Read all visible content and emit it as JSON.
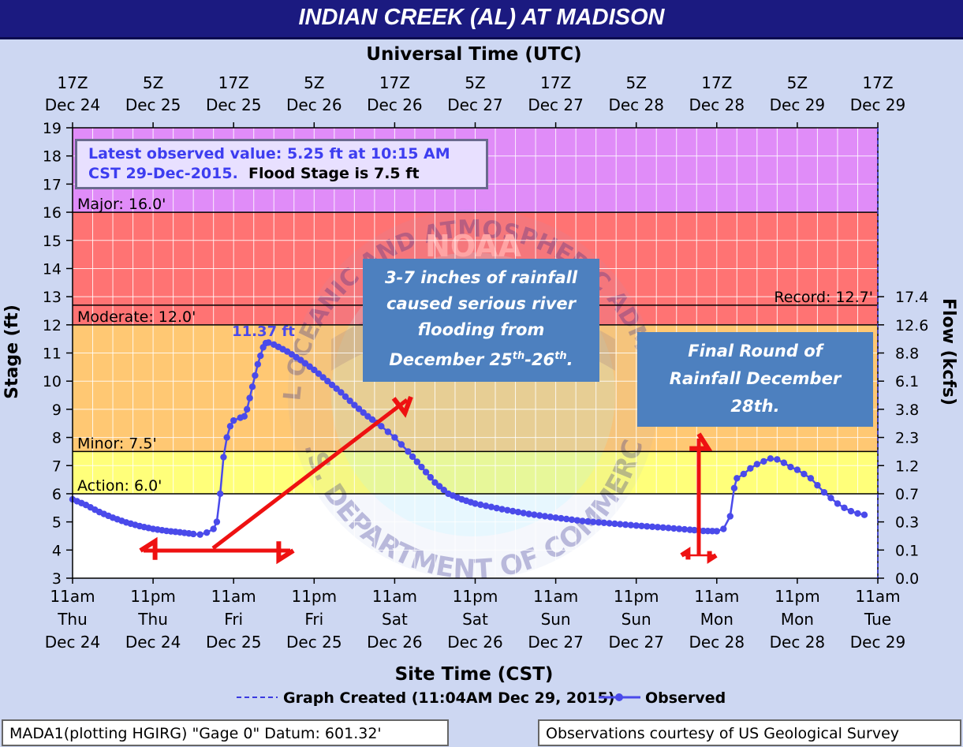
{
  "title": "INDIAN CREEK (AL) AT MADISON",
  "top_axis_title": "Universal Time (UTC)",
  "bottom_axis_title": "Site Time (CST)",
  "left_axis_title": "Stage (ft)",
  "right_axis_title": "Flow (kcfs)",
  "latest": {
    "line1": "Latest observed value: 5.25 ft at 10:15 AM",
    "line2_blue": "CST 29-Dec-2015.",
    "line2_black": "Flood Stage is 7.5 ft"
  },
  "peak_label": "11.37 ft",
  "callouts": {
    "rainfall_line1": "3-7 inches of rainfall",
    "rainfall_line2": "caused serious river",
    "rainfall_line3": "flooding  from",
    "rainfall_line4a": "December 25",
    "rainfall_sup1": "th",
    "rainfall_line4b": "-26",
    "rainfall_sup2": "th",
    "rainfall_line4c": ".",
    "final_line1": "Final Round of",
    "final_line2": "Rainfall December",
    "final_line3": "28th."
  },
  "legend": {
    "graph_created": "Graph Created (11:04AM Dec 29, 2015)",
    "observed": "Observed"
  },
  "footer": {
    "left": "MADA1(plotting HGIRG) \"Gage 0\" Datum: 601.32'",
    "right": "Observations courtesy of US Geological Survey"
  },
  "watermark": {
    "top_text": "NATIONAL OCEANIC AND ATMOSPHERIC ADMINISTRATION",
    "bottom_text": "U.S. DEPARTMENT OF COMMERCE",
    "center_text": "NOAA"
  },
  "colors": {
    "major": "#e08cf8",
    "moderate": "#ff7373",
    "minor": "#ffc873",
    "action": "#ffff7a",
    "series": "#4a4aea",
    "arrows": "#ee1111",
    "callout": "#4d80bf"
  },
  "chart_data": {
    "type": "line",
    "ylim": [
      3,
      19
    ],
    "y_ticks": [
      "3",
      "4",
      "5",
      "6",
      "7",
      "8",
      "9",
      "10",
      "11",
      "12",
      "13",
      "14",
      "15",
      "16",
      "17",
      "18",
      "19"
    ],
    "flow_ticks": [
      {
        "stage": 3,
        "label": "0.0"
      },
      {
        "stage": 4,
        "label": "0.1"
      },
      {
        "stage": 5,
        "label": "0.3"
      },
      {
        "stage": 6,
        "label": "0.7"
      },
      {
        "stage": 7,
        "label": "1.2"
      },
      {
        "stage": 8,
        "label": "2.3"
      },
      {
        "stage": 9,
        "label": "3.8"
      },
      {
        "stage": 10,
        "label": "6.1"
      },
      {
        "stage": 11,
        "label": "8.8"
      },
      {
        "stage": 12,
        "label": "12.6"
      },
      {
        "stage": 13,
        "label": "17.4"
      }
    ],
    "x_hours_range": [
      0,
      120
    ],
    "bottom_ticks": [
      {
        "h": 0,
        "l1": "11am",
        "l2": "Thu",
        "l3": "Dec 24"
      },
      {
        "h": 12,
        "l1": "11pm",
        "l2": "Thu",
        "l3": "Dec 24"
      },
      {
        "h": 24,
        "l1": "11am",
        "l2": "Fri",
        "l3": "Dec 25"
      },
      {
        "h": 36,
        "l1": "11pm",
        "l2": "Fri",
        "l3": "Dec 25"
      },
      {
        "h": 48,
        "l1": "11am",
        "l2": "Sat",
        "l3": "Dec 26"
      },
      {
        "h": 60,
        "l1": "11pm",
        "l2": "Sat",
        "l3": "Dec 26"
      },
      {
        "h": 72,
        "l1": "11am",
        "l2": "Sun",
        "l3": "Dec 27"
      },
      {
        "h": 84,
        "l1": "11pm",
        "l2": "Sun",
        "l3": "Dec 27"
      },
      {
        "h": 96,
        "l1": "11am",
        "l2": "Mon",
        "l3": "Dec 28"
      },
      {
        "h": 108,
        "l1": "11pm",
        "l2": "Mon",
        "l3": "Dec 28"
      },
      {
        "h": 120,
        "l1": "11am",
        "l2": "Tue",
        "l3": "Dec 29"
      }
    ],
    "top_ticks": [
      {
        "h": 0,
        "l1": "17Z",
        "l2": "Dec 24"
      },
      {
        "h": 12,
        "l1": "5Z",
        "l2": "Dec 25"
      },
      {
        "h": 24,
        "l1": "17Z",
        "l2": "Dec 25"
      },
      {
        "h": 36,
        "l1": "5Z",
        "l2": "Dec 26"
      },
      {
        "h": 48,
        "l1": "17Z",
        "l2": "Dec 26"
      },
      {
        "h": 60,
        "l1": "5Z",
        "l2": "Dec 27"
      },
      {
        "h": 72,
        "l1": "17Z",
        "l2": "Dec 27"
      },
      {
        "h": 84,
        "l1": "5Z",
        "l2": "Dec 28"
      },
      {
        "h": 96,
        "l1": "17Z",
        "l2": "Dec 28"
      },
      {
        "h": 108,
        "l1": "5Z",
        "l2": "Dec 29"
      },
      {
        "h": 120,
        "l1": "17Z",
        "l2": "Dec 29"
      }
    ],
    "bands": [
      {
        "name": "Major",
        "label": "Major: 16.0'",
        "from": 16,
        "to": 19,
        "color": "#e08cf8"
      },
      {
        "name": "Moderate",
        "label": "Moderate: 12.0'",
        "from": 12,
        "to": 16,
        "color": "#ff7373"
      },
      {
        "name": "Minor",
        "label": "Minor: 7.5'",
        "from": 7.5,
        "to": 12,
        "color": "#ffc873"
      },
      {
        "name": "Action",
        "label": "Action: 6.0'",
        "from": 6,
        "to": 7.5,
        "color": "#ffff7a"
      }
    ],
    "record": {
      "label": "Record: 12.7'",
      "value": 12.7
    },
    "series": [
      {
        "name": "Observed",
        "points": [
          [
            0,
            5.8
          ],
          [
            2,
            5.6
          ],
          [
            4,
            5.35
          ],
          [
            6,
            5.15
          ],
          [
            8,
            4.98
          ],
          [
            10,
            4.85
          ],
          [
            12,
            4.75
          ],
          [
            14,
            4.68
          ],
          [
            16,
            4.63
          ],
          [
            18,
            4.57
          ],
          [
            19,
            4.55
          ],
          [
            20,
            4.62
          ],
          [
            21,
            4.75
          ],
          [
            21.5,
            5.0
          ],
          [
            22,
            6.0
          ],
          [
            22.5,
            7.3
          ],
          [
            23,
            8.0
          ],
          [
            23.5,
            8.4
          ],
          [
            24,
            8.6
          ],
          [
            25,
            8.7
          ],
          [
            25.6,
            8.75
          ],
          [
            26,
            9.0
          ],
          [
            26.4,
            9.4
          ],
          [
            26.8,
            9.8
          ],
          [
            27.2,
            10.2
          ],
          [
            27.6,
            10.6
          ],
          [
            28,
            10.9
          ],
          [
            28.4,
            11.2
          ],
          [
            28.8,
            11.35
          ],
          [
            29.2,
            11.37
          ],
          [
            30,
            11.3
          ],
          [
            32,
            11.05
          ],
          [
            34,
            10.75
          ],
          [
            36,
            10.4
          ],
          [
            38,
            10.0
          ],
          [
            40,
            9.6
          ],
          [
            42,
            9.15
          ],
          [
            44,
            8.75
          ],
          [
            46,
            8.4
          ],
          [
            47,
            8.2
          ],
          [
            48,
            8.0
          ],
          [
            49,
            7.75
          ],
          [
            50,
            7.5
          ],
          [
            52,
            6.95
          ],
          [
            54,
            6.4
          ],
          [
            56,
            6.0
          ],
          [
            58,
            5.8
          ],
          [
            60,
            5.65
          ],
          [
            64,
            5.45
          ],
          [
            68,
            5.28
          ],
          [
            72,
            5.15
          ],
          [
            76,
            5.03
          ],
          [
            80,
            4.95
          ],
          [
            84,
            4.87
          ],
          [
            88,
            4.8
          ],
          [
            92,
            4.72
          ],
          [
            94,
            4.68
          ],
          [
            96,
            4.67
          ],
          [
            97,
            4.75
          ],
          [
            98,
            5.2
          ],
          [
            98.6,
            6.2
          ],
          [
            99,
            6.55
          ],
          [
            100,
            6.7
          ],
          [
            101,
            6.9
          ],
          [
            102,
            7.05
          ],
          [
            103,
            7.15
          ],
          [
            104,
            7.25
          ],
          [
            105,
            7.22
          ],
          [
            106,
            7.1
          ],
          [
            107,
            6.95
          ],
          [
            108,
            6.85
          ],
          [
            109,
            6.7
          ],
          [
            110,
            6.55
          ],
          [
            111,
            6.3
          ],
          [
            112,
            6.05
          ],
          [
            113,
            5.85
          ],
          [
            114,
            5.65
          ],
          [
            115,
            5.5
          ],
          [
            116,
            5.38
          ],
          [
            117,
            5.3
          ],
          [
            118,
            5.25
          ]
        ]
      }
    ]
  }
}
